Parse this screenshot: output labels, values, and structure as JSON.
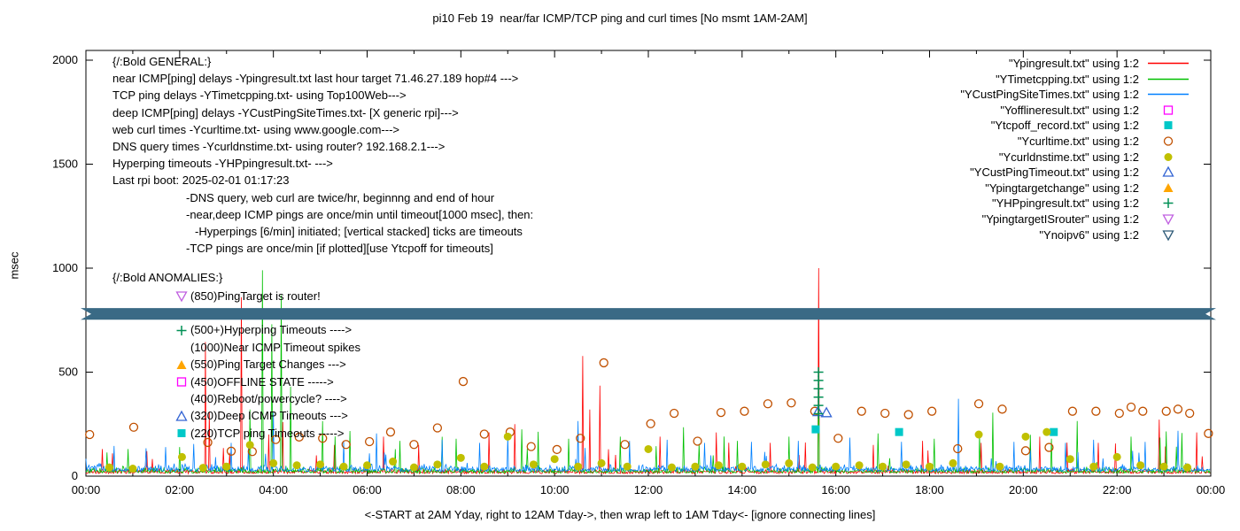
{
  "title": "pi10 Feb 19  near/far ICMP/TCP ping and curl times [No msmt 1AM-2AM]",
  "axes": {
    "ylabel": "msec",
    "xlabel": "<-START at 2AM Yday, right to 12AM Tday->, then wrap left to 1AM Tday<- [ignore connecting lines]",
    "x_ticks": [
      "00:00",
      "02:00",
      "04:00",
      "06:00",
      "08:00",
      "10:00",
      "12:00",
      "14:00",
      "16:00",
      "18:00",
      "20:00",
      "22:00",
      "00:00"
    ],
    "y_ticks": [
      "0",
      "500",
      "1000",
      "1500",
      "2000"
    ]
  },
  "annotations": {
    "general": [
      {
        "text": "{/:Bold GENERAL:}",
        "indent": 0
      },
      {
        "text": "near ICMP[ping] delays -Ypingresult.txt last hour target 71.46.27.189 hop#4 --->",
        "indent": 0
      },
      {
        "text": "TCP ping delays -YTimetcpping.txt- using Top100Web--->",
        "indent": 0
      },
      {
        "text": "deep ICMP[ping] delays -YCustPingSiteTimes.txt- [X generic rpi]--->",
        "indent": 0
      },
      {
        "text": "web curl times -Ycurltime.txt- using www.google.com--->",
        "indent": 0
      },
      {
        "text": "DNS query times -Ycurldnstime.txt- using router? 192.168.2.1--->",
        "indent": 0
      },
      {
        "text": "Hyperping timeouts -YHPpingresult.txt- --->",
        "indent": 0
      },
      {
        "text": "Last rpi boot: 2025-02-01 01:17:23",
        "indent": 0
      },
      {
        "text": "-DNS query, web curl are twice/hr, beginnng and end of hour",
        "indent": 1
      },
      {
        "text": "-near,deep ICMP pings are once/min until timeout[1000 msec], then:",
        "indent": 1
      },
      {
        "text": "-Hyperpings [6/min] initiated; [vertical stacked] ticks are timeouts",
        "indent": 2
      },
      {
        "text": "-TCP pings are once/min [if plotted][use Ytcpoff for timeouts]",
        "indent": 1
      }
    ],
    "anomalies": {
      "header": "{/:Bold ANOMALIES:}",
      "rows": [
        {
          "marker": "triangle-down-open",
          "color": "#C060E0",
          "text": "(850)PingTarget is router!"
        },
        {
          "marker": null,
          "color": null,
          "text": ""
        },
        {
          "marker": "plus",
          "color": "#009055",
          "text": "(500+)Hyperping Timeouts ---->"
        },
        {
          "marker": null,
          "color": null,
          "text": "(1000)Near ICMP Timeout spikes"
        },
        {
          "marker": "triangle-filled",
          "color": "#FFA500",
          "text": "(550)Ping Target Changes --->"
        },
        {
          "marker": "square-open",
          "color": "#FF00FF",
          "text": "(450)OFFLINE STATE ----->"
        },
        {
          "marker": null,
          "color": null,
          "text": "(400)Reboot/powercycle? ---->"
        },
        {
          "marker": "triangle-open",
          "color": "#3465D4",
          "text": "(320)Deep ICMP Timeouts --->"
        },
        {
          "marker": "square-filled",
          "color": "#00C8C8",
          "text": "(220)TCP ping Timeouts ----->"
        }
      ]
    }
  },
  "chart_data": {
    "type": "line",
    "title": "pi10 Feb 19  near/far ICMP/TCP ping and curl times [No msmt 1AM-2AM]",
    "xlabel": "<-START at 2AM Yday, right to 12AM Tday->, then wrap left to 1AM Tday<- [ignore connecting lines]",
    "ylabel": "msec",
    "ylim": [
      0,
      2050
    ],
    "x_hours": [
      0,
      24
    ],
    "legend_position": "top-right",
    "grid": false,
    "band": {
      "y": 780,
      "half_height": 28,
      "color": "#3A6A85",
      "note": "opaque horizontal ribbon with notched ends spanning full width"
    },
    "series": [
      {
        "name": "Ypingresult",
        "legend_label": "\"Ypingresult.txt\" using 1:2",
        "style": "line",
        "color": "#FF0000",
        "noise": {
          "seed": 11,
          "base": 12,
          "jitter": 20,
          "p": 0.012,
          "extra": 180
        },
        "spikes": [
          [
            0.35,
            130
          ],
          [
            1.3,
            120
          ],
          [
            2.55,
            645
          ],
          [
            2.63,
            310
          ],
          [
            3.32,
            860
          ],
          [
            3.9,
            200
          ],
          [
            4.2,
            260
          ],
          [
            5.3,
            150
          ],
          [
            6.35,
            190
          ],
          [
            7.1,
            150
          ],
          [
            8.6,
            210
          ],
          [
            9.15,
            250
          ],
          [
            10.6,
            578
          ],
          [
            10.75,
            320
          ],
          [
            10.97,
            435
          ],
          [
            12.25,
            190
          ],
          [
            13.45,
            210
          ],
          [
            14.6,
            160
          ],
          [
            15.63,
            1000
          ],
          [
            16.8,
            150
          ],
          [
            17.85,
            170
          ],
          [
            19.1,
            160
          ],
          [
            20.35,
            190
          ],
          [
            21.6,
            160
          ],
          [
            22.9,
            272
          ],
          [
            23.7,
            210
          ]
        ]
      },
      {
        "name": "YTimetcpping",
        "legend_label": "\"YTimetcpping.txt\" using 1:2",
        "style": "line",
        "color": "#00C000",
        "noise": {
          "seed": 22,
          "base": 15,
          "jitter": 24,
          "p": 0.012,
          "extra": 200
        },
        "spikes": [
          [
            0.9,
            130
          ],
          [
            2.0,
            140
          ],
          [
            3.5,
            320
          ],
          [
            3.76,
            990
          ],
          [
            3.96,
            730
          ],
          [
            4.16,
            870
          ],
          [
            4.36,
            430
          ],
          [
            5.05,
            265
          ],
          [
            6.7,
            170
          ],
          [
            7.9,
            180
          ],
          [
            9.3,
            225
          ],
          [
            10.3,
            180
          ],
          [
            11.4,
            190
          ],
          [
            12.75,
            235
          ],
          [
            13.9,
            170
          ],
          [
            15.0,
            190
          ],
          [
            15.63,
            505
          ],
          [
            16.9,
            205
          ],
          [
            18.1,
            180
          ],
          [
            19.35,
            305
          ],
          [
            20.6,
            180
          ],
          [
            21.15,
            265
          ],
          [
            22.3,
            190
          ],
          [
            23.05,
            215
          ]
        ]
      },
      {
        "name": "YCustPingSiteTimes",
        "legend_label": "\"YCustPingSiteTimes.txt\" using 1:2",
        "style": "line",
        "color": "#0080FF",
        "noise": {
          "seed": 33,
          "base": 22,
          "jitter": 30,
          "p": 0.02,
          "extra": 110
        },
        "spikes": [
          [
            0.6,
            145
          ],
          [
            1.7,
            140
          ],
          [
            2.3,
            155
          ],
          [
            3.1,
            160
          ],
          [
            4.0,
            305
          ],
          [
            5.5,
            165
          ],
          [
            6.2,
            205
          ],
          [
            7.6,
            175
          ],
          [
            8.4,
            160
          ],
          [
            9.0,
            195
          ],
          [
            10.5,
            265
          ],
          [
            11.6,
            170
          ],
          [
            12.4,
            175
          ],
          [
            13.2,
            160
          ],
          [
            14.2,
            165
          ],
          [
            15.2,
            170
          ],
          [
            16.3,
            185
          ],
          [
            17.4,
            165
          ],
          [
            18.62,
            372
          ],
          [
            19.8,
            165
          ],
          [
            20.9,
            160
          ],
          [
            21.5,
            175
          ],
          [
            22.6,
            165
          ],
          [
            23.3,
            218
          ]
        ]
      },
      {
        "name": "Yofflineresult",
        "legend_label": "\"Yofflineresult.txt\" using 1:2",
        "style": "points",
        "marker": "square-open",
        "color": "#FF00FF",
        "points": []
      },
      {
        "name": "Ytcpoff_record",
        "legend_label": "\"Ytcpoff_record.txt\" using 1:2",
        "style": "points",
        "marker": "square-filled",
        "color": "#00C8C8",
        "points": [
          [
            15.57,
            225
          ],
          [
            17.35,
            212
          ],
          [
            20.65,
            212
          ]
        ]
      },
      {
        "name": "Ycurltime",
        "legend_label": "\"Ycurltime.txt\" using 1:2",
        "style": "points",
        "marker": "circle-open",
        "color": "#C05000",
        "points": [
          [
            0.08,
            200
          ],
          [
            1.02,
            235
          ],
          [
            2.6,
            162
          ],
          [
            3.1,
            120
          ],
          [
            3.55,
            118
          ],
          [
            4.05,
            176
          ],
          [
            4.55,
            188
          ],
          [
            5.05,
            182
          ],
          [
            5.55,
            152
          ],
          [
            6.05,
            166
          ],
          [
            6.5,
            212
          ],
          [
            7.0,
            152
          ],
          [
            7.5,
            232
          ],
          [
            8.05,
            455
          ],
          [
            8.5,
            202
          ],
          [
            9.05,
            212
          ],
          [
            9.5,
            142
          ],
          [
            10.05,
            128
          ],
          [
            10.55,
            182
          ],
          [
            11.05,
            545
          ],
          [
            11.5,
            152
          ],
          [
            12.05,
            252
          ],
          [
            12.55,
            302
          ],
          [
            13.05,
            168
          ],
          [
            13.55,
            306
          ],
          [
            14.05,
            312
          ],
          [
            14.55,
            348
          ],
          [
            15.05,
            352
          ],
          [
            15.55,
            312
          ],
          [
            16.05,
            182
          ],
          [
            16.55,
            312
          ],
          [
            17.05,
            302
          ],
          [
            17.55,
            296
          ],
          [
            18.05,
            312
          ],
          [
            18.6,
            132
          ],
          [
            19.05,
            348
          ],
          [
            19.55,
            322
          ],
          [
            20.05,
            122
          ],
          [
            20.55,
            138
          ],
          [
            21.05,
            312
          ],
          [
            21.55,
            312
          ],
          [
            22.05,
            302
          ],
          [
            22.3,
            332
          ],
          [
            22.55,
            312
          ],
          [
            23.05,
            312
          ],
          [
            23.3,
            322
          ],
          [
            23.55,
            302
          ],
          [
            23.95,
            205
          ]
        ]
      },
      {
        "name": "Ycurldnstime",
        "legend_label": "\"Ycurldnstime.txt\" using 1:2",
        "style": "points",
        "marker": "circle-filled",
        "color": "#C0C000",
        "points": [
          [
            0.5,
            42
          ],
          [
            1.0,
            36
          ],
          [
            2.05,
            92
          ],
          [
            2.5,
            40
          ],
          [
            3.0,
            46
          ],
          [
            3.5,
            150
          ],
          [
            4.0,
            62
          ],
          [
            4.5,
            52
          ],
          [
            5.0,
            56
          ],
          [
            5.5,
            46
          ],
          [
            6.0,
            52
          ],
          [
            6.55,
            70
          ],
          [
            7.0,
            42
          ],
          [
            7.5,
            56
          ],
          [
            8.0,
            88
          ],
          [
            8.5,
            46
          ],
          [
            9.0,
            190
          ],
          [
            9.55,
            56
          ],
          [
            10.0,
            82
          ],
          [
            10.5,
            46
          ],
          [
            11.0,
            62
          ],
          [
            11.55,
            46
          ],
          [
            12.0,
            130
          ],
          [
            12.5,
            42
          ],
          [
            13.0,
            46
          ],
          [
            13.5,
            52
          ],
          [
            14.0,
            46
          ],
          [
            14.5,
            56
          ],
          [
            15.0,
            62
          ],
          [
            15.5,
            42
          ],
          [
            16.0,
            46
          ],
          [
            16.5,
            52
          ],
          [
            17.0,
            46
          ],
          [
            17.5,
            56
          ],
          [
            18.0,
            46
          ],
          [
            18.5,
            62
          ],
          [
            19.05,
            200
          ],
          [
            19.5,
            46
          ],
          [
            20.05,
            190
          ],
          [
            20.5,
            212
          ],
          [
            21.0,
            82
          ],
          [
            21.5,
            46
          ],
          [
            22.0,
            92
          ],
          [
            22.5,
            52
          ],
          [
            23.0,
            46
          ],
          [
            23.5,
            42
          ]
        ]
      },
      {
        "name": "YCustPingTimeout",
        "legend_label": "\"YCustPingTimeout.txt\" using 1:2",
        "style": "points",
        "marker": "triangle-open",
        "color": "#3465D4",
        "points": [
          [
            15.62,
            310
          ],
          [
            15.8,
            305
          ]
        ]
      },
      {
        "name": "Ypingtargetchange",
        "legend_label": "\"Ypingtargetchange\" using 1:2",
        "style": "points",
        "marker": "triangle-filled",
        "color": "#FFA500",
        "points": []
      },
      {
        "name": "YHPpingresult",
        "legend_label": "\"YHPpingresult.txt\" using 1:2",
        "style": "points",
        "marker": "plus",
        "color": "#009055",
        "points": [
          [
            15.63,
            300
          ],
          [
            15.63,
            340
          ],
          [
            15.63,
            380
          ],
          [
            15.63,
            420
          ],
          [
            15.63,
            460
          ],
          [
            15.63,
            500
          ]
        ]
      },
      {
        "name": "YpingtargetISrouter",
        "legend_label": "\"YpingtargetISrouter\" using 1:2",
        "style": "points",
        "marker": "triangle-down-open",
        "color": "#C060E0",
        "points": []
      },
      {
        "name": "Ynoipv6",
        "legend_label": "\"Ynoipv6\" using 1:2",
        "style": "points",
        "marker": "triangle-down-open",
        "color": "#2E5A78",
        "points": []
      }
    ]
  }
}
